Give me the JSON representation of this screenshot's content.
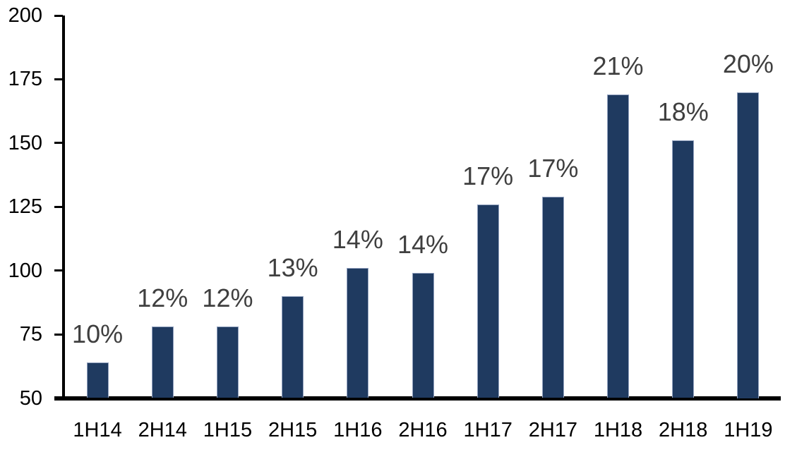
{
  "chart_data": {
    "type": "bar",
    "title": "",
    "xlabel": "",
    "ylabel": "",
    "categories": [
      "1H14",
      "2H14",
      "1H15",
      "2H15",
      "1H16",
      "2H16",
      "1H17",
      "2H17",
      "1H18",
      "2H18",
      "1H19"
    ],
    "values": [
      64,
      78,
      78,
      90,
      101,
      99,
      126,
      129,
      169,
      151,
      170
    ],
    "data_labels": [
      "10%",
      "12%",
      "12%",
      "13%",
      "14%",
      "14%",
      "17%",
      "17%",
      "21%",
      "18%",
      "20%"
    ],
    "ylim": [
      50,
      200
    ],
    "yticks": [
      50,
      75,
      100,
      125,
      150,
      175,
      200
    ],
    "grid": false,
    "legend": false,
    "bar_color": "#1F3A60",
    "bar_border_color": "#94A3C0",
    "data_label_color": "#3F3F3F",
    "axis_color": "#000000",
    "background_color": "#FFFFFF"
  }
}
